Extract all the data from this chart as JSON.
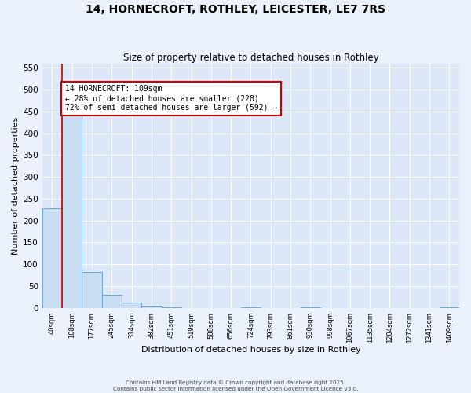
{
  "title": "14, HORNECROFT, ROTHLEY, LEICESTER, LE7 7RS",
  "subtitle": "Size of property relative to detached houses in Rothley",
  "xlabel": "Distribution of detached houses by size in Rothley",
  "ylabel": "Number of detached properties",
  "bin_labels": [
    "40sqm",
    "108sqm",
    "177sqm",
    "245sqm",
    "314sqm",
    "382sqm",
    "451sqm",
    "519sqm",
    "588sqm",
    "656sqm",
    "724sqm",
    "793sqm",
    "861sqm",
    "930sqm",
    "998sqm",
    "1067sqm",
    "1135sqm",
    "1204sqm",
    "1272sqm",
    "1341sqm",
    "1409sqm"
  ],
  "bar_values": [
    228,
    455,
    83,
    30,
    12,
    5,
    1,
    0,
    0,
    0,
    1,
    0,
    0,
    1,
    0,
    0,
    0,
    0,
    0,
    0,
    1
  ],
  "bar_color": "#c9ddf2",
  "bar_edge_color": "#6aaad4",
  "annotation_text": "14 HORNECROFT: 109sqm\n← 28% of detached houses are smaller (228)\n72% of semi-detached houses are larger (592) →",
  "annotation_box_color": "#ffffff",
  "annotation_box_edge": "#cc0000",
  "vline_color": "#cc0000",
  "ylim": [
    0,
    560
  ],
  "yticks": [
    0,
    50,
    100,
    150,
    200,
    250,
    300,
    350,
    400,
    450,
    500,
    550
  ],
  "footer_line1": "Contains HM Land Registry data © Crown copyright and database right 2025.",
  "footer_line2": "Contains public sector information licensed under the Open Government Licence v3.0.",
  "background_color": "#eaf1fb",
  "plot_bg_color": "#dce8f8"
}
